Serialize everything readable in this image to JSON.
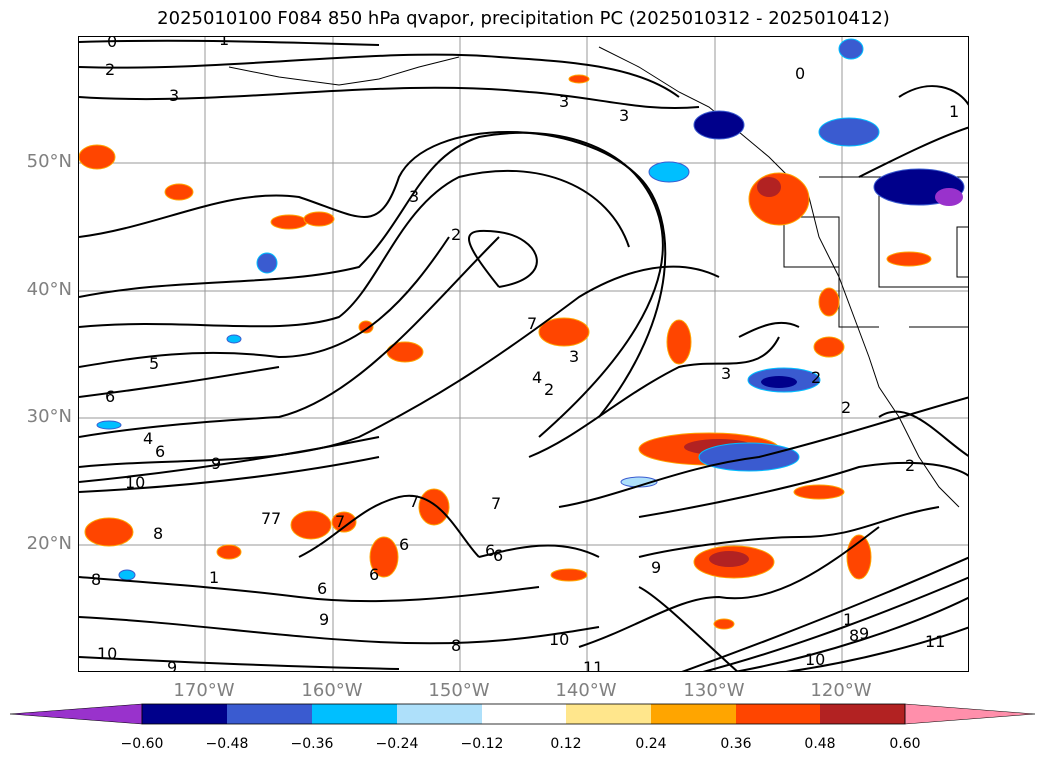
{
  "title": "2025010100 F084 850 hPa qvapor, precipitation PC (2025010312 - 2025010412)",
  "lat_labels": [
    "50°N",
    "40°N",
    "30°N",
    "20°N"
  ],
  "lon_labels": [
    "170°W",
    "160°W",
    "150°W",
    "140°W",
    "130°W",
    "120°W"
  ],
  "contour_labels": [
    "0",
    "1",
    "2",
    "3",
    "3",
    "3",
    "2",
    "3",
    "5",
    "6",
    "4",
    "6",
    "9",
    "10",
    "7",
    "3",
    "2",
    "4",
    "7",
    "7",
    "7",
    "6",
    "6",
    "6",
    "1",
    "6",
    "9",
    "8",
    "8",
    "9",
    "10",
    "9",
    "11",
    "10",
    "8",
    "2",
    "2",
    "1",
    "3",
    "2",
    "7",
    "6",
    "8",
    "10",
    "11",
    "9",
    "1",
    "0",
    "7"
  ],
  "colorbar": {
    "ticks": [
      "−0.60",
      "−0.48",
      "−0.36",
      "−0.24",
      "−0.12",
      "0.12",
      "0.24",
      "0.36",
      "0.48",
      "0.60"
    ],
    "colors": [
      "#9932cc",
      "#00008b",
      "#3a5bd0",
      "#00bfff",
      "#aee0fa",
      "#ffffff",
      "#ffe68c",
      "#ffa500",
      "#ff4500",
      "#b22222",
      "#ff8fab"
    ]
  }
}
